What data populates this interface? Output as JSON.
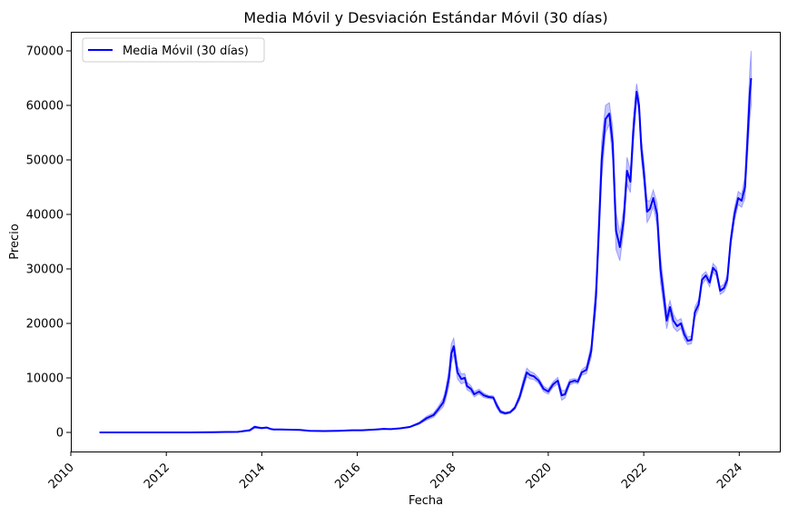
{
  "chart_data": {
    "type": "line",
    "title": "Media Móvil y Desviación Estándar Móvil (30 días)",
    "xlabel": "Fecha",
    "ylabel": "Precio",
    "xlim": [
      2010.0,
      2024.85
    ],
    "ylim": [
      -3500,
      73500
    ],
    "x_ticks": [
      2010,
      2012,
      2014,
      2016,
      2018,
      2020,
      2022,
      2024
    ],
    "y_ticks": [
      0,
      10000,
      20000,
      30000,
      40000,
      50000,
      60000,
      70000
    ],
    "grid": false,
    "legend": {
      "placement": "top-left",
      "entries": [
        "Media Móvil (30 días)"
      ]
    },
    "colors": {
      "line": "#0000ff",
      "band": "#0000ff"
    },
    "series": [
      {
        "name": "Media Móvil (30 días)",
        "x": [
          2010.6,
          2011.0,
          2011.5,
          2012.0,
          2012.5,
          2013.0,
          2013.25,
          2013.5,
          2013.75,
          2013.85,
          2013.92,
          2014.0,
          2014.1,
          2014.2,
          2014.25,
          2014.4,
          2014.6,
          2014.8,
          2015.0,
          2015.3,
          2015.6,
          2015.9,
          2016.1,
          2016.4,
          2016.55,
          2016.7,
          2016.9,
          2017.1,
          2017.3,
          2017.45,
          2017.6,
          2017.7,
          2017.8,
          2017.85,
          2017.92,
          2017.97,
          2018.02,
          2018.1,
          2018.18,
          2018.25,
          2018.3,
          2018.38,
          2018.45,
          2018.55,
          2018.65,
          2018.75,
          2018.85,
          2018.92,
          2019.0,
          2019.1,
          2019.2,
          2019.3,
          2019.4,
          2019.48,
          2019.55,
          2019.62,
          2019.7,
          2019.8,
          2019.9,
          2020.0,
          2020.1,
          2020.2,
          2020.28,
          2020.35,
          2020.45,
          2020.55,
          2020.62,
          2020.7,
          2020.8,
          2020.9,
          2021.0,
          2021.05,
          2021.12,
          2021.2,
          2021.28,
          2021.35,
          2021.42,
          2021.5,
          2021.58,
          2021.65,
          2021.72,
          2021.78,
          2021.85,
          2021.9,
          2021.95,
          2022.0,
          2022.07,
          2022.13,
          2022.2,
          2022.28,
          2022.35,
          2022.42,
          2022.48,
          2022.55,
          2022.62,
          2022.7,
          2022.78,
          2022.85,
          2022.92,
          2023.0,
          2023.07,
          2023.15,
          2023.22,
          2023.3,
          2023.38,
          2023.45,
          2023.52,
          2023.6,
          2023.68,
          2023.75,
          2023.82,
          2023.9,
          2023.98,
          2024.05,
          2024.12,
          2024.18,
          2024.22,
          2024.25
        ],
        "values": [
          0,
          0,
          0,
          0,
          0,
          50,
          80,
          100,
          400,
          1000,
          900,
          800,
          900,
          600,
          550,
          550,
          500,
          450,
          300,
          250,
          300,
          400,
          400,
          550,
          650,
          600,
          750,
          1000,
          1700,
          2600,
          3200,
          4300,
          5500,
          7000,
          10000,
          14500,
          15800,
          11000,
          9800,
          10000,
          8500,
          8000,
          7000,
          7500,
          6800,
          6500,
          6400,
          5000,
          3800,
          3500,
          3700,
          4500,
          6500,
          9000,
          11000,
          10500,
          10300,
          9500,
          8000,
          7500,
          8800,
          9500,
          6800,
          7000,
          9200,
          9500,
          9300,
          11000,
          11500,
          15000,
          25000,
          35000,
          50000,
          57500,
          58500,
          53000,
          37000,
          34000,
          39000,
          48000,
          46000,
          55000,
          62500,
          60000,
          52000,
          48000,
          40500,
          41000,
          43000,
          40000,
          30000,
          25000,
          20500,
          23000,
          20500,
          19500,
          20000,
          18000,
          16800,
          17000,
          22000,
          23500,
          28000,
          28800,
          27500,
          30200,
          29500,
          26000,
          26500,
          28000,
          35000,
          40000,
          43000,
          42500,
          45000,
          55000,
          62000,
          65000
        ],
        "std": [
          0,
          0,
          0,
          0,
          0,
          10,
          20,
          30,
          150,
          200,
          150,
          120,
          100,
          80,
          60,
          50,
          40,
          30,
          30,
          25,
          25,
          30,
          30,
          40,
          50,
          40,
          60,
          80,
          200,
          350,
          400,
          500,
          800,
          1000,
          1500,
          1800,
          1500,
          1200,
          900,
          800,
          700,
          600,
          500,
          450,
          400,
          300,
          300,
          500,
          300,
          200,
          200,
          300,
          600,
          900,
          800,
          700,
          600,
          500,
          500,
          500,
          500,
          600,
          900,
          700,
          500,
          400,
          400,
          500,
          700,
          1200,
          2500,
          3000,
          3500,
          2500,
          2000,
          3000,
          3500,
          2500,
          2000,
          2500,
          2000,
          2500,
          1500,
          1500,
          2000,
          2000,
          2000,
          1500,
          1500,
          2000,
          2500,
          2000,
          1500,
          1200,
          1200,
          1000,
          900,
          900,
          700,
          700,
          1000,
          900,
          900,
          700,
          800,
          800,
          800,
          700,
          700,
          900,
          1200,
          1200,
          1200,
          1200,
          2000,
          3500,
          4500,
          5000
        ]
      }
    ]
  }
}
